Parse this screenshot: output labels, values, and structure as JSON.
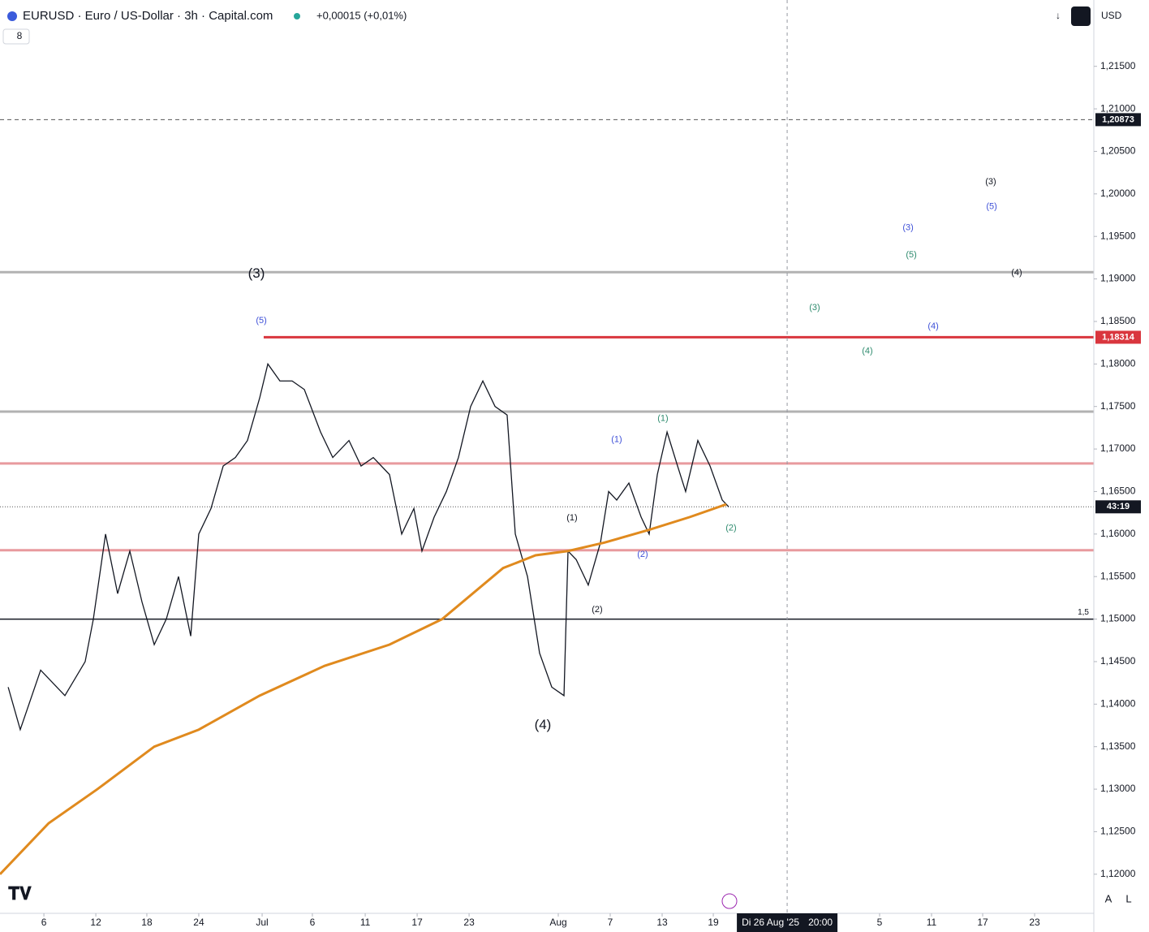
{
  "header": {
    "symbol": "EURUSD · Euro / US-Dollar · 3h · Capital.com",
    "change": "+0,00015 (+0,01%)",
    "indicator_count": "8",
    "currency": "USD"
  },
  "chart_data": {
    "type": "line",
    "xlim": [
      0,
      84.25
    ],
    "ylim": [
      1.1154,
      1.2228
    ],
    "xticks": [
      {
        "value": 3.38,
        "label": "6"
      },
      {
        "value": 7.38,
        "label": "12"
      },
      {
        "value": 11.31,
        "label": "18"
      },
      {
        "value": 15.31,
        "label": "24"
      },
      {
        "value": 20.19,
        "label": "Jul"
      },
      {
        "value": 24.06,
        "label": "6"
      },
      {
        "value": 28.13,
        "label": "11"
      },
      {
        "value": 32.13,
        "label": "17"
      },
      {
        "value": 36.13,
        "label": "23"
      },
      {
        "value": 43,
        "label": "Aug"
      },
      {
        "value": 47,
        "label": "7"
      },
      {
        "value": 51,
        "label": "13"
      },
      {
        "value": 54.94,
        "label": "19"
      },
      {
        "value": 67.75,
        "label": "5"
      },
      {
        "value": 71.75,
        "label": "11"
      },
      {
        "value": 75.69,
        "label": "17"
      },
      {
        "value": 79.69,
        "label": "23"
      }
    ],
    "yticks": [
      {
        "value": 1.12,
        "label": "1,12000"
      },
      {
        "value": 1.125,
        "label": "1,12500"
      },
      {
        "value": 1.13,
        "label": "1,13000"
      },
      {
        "value": 1.135,
        "label": "1,13500"
      },
      {
        "value": 1.14,
        "label": "1,14000"
      },
      {
        "value": 1.145,
        "label": "1,14500"
      },
      {
        "value": 1.15,
        "label": "1,15000"
      },
      {
        "value": 1.155,
        "label": "1,15500"
      },
      {
        "value": 1.16,
        "label": "1,16000"
      },
      {
        "value": 1.165,
        "label": "1,16500"
      },
      {
        "value": 1.17,
        "label": "1,17000"
      },
      {
        "value": 1.175,
        "label": "1,17500"
      },
      {
        "value": 1.18,
        "label": "1,18000"
      },
      {
        "value": 1.185,
        "label": "1,18500"
      },
      {
        "value": 1.19,
        "label": "1,19000"
      },
      {
        "value": 1.195,
        "label": "1,19500"
      },
      {
        "value": 1.2,
        "label": "1,20000"
      },
      {
        "value": 1.205,
        "label": "1,20500"
      },
      {
        "value": 1.21,
        "label": "1,21000"
      },
      {
        "value": 1.215,
        "label": "1,21500"
      }
    ],
    "series": [
      {
        "color": "#131722",
        "x": [
          0.63,
          1.56,
          3.13,
          5,
          6.56,
          7.19,
          8.13,
          9.06,
          10,
          10.94,
          11.88,
          12.81,
          13.75,
          14.69,
          15.31,
          16.25,
          17.19,
          18.13,
          19.06,
          20,
          20.63,
          21.56,
          22.5,
          23.44,
          24.69,
          25.63,
          26.88,
          27.81,
          28.75,
          30,
          30.94,
          31.88,
          32.5,
          33.44,
          34.38,
          35.31,
          36.25,
          37.19,
          38.13,
          39.06,
          39.69,
          40.63,
          41.56,
          42.5,
          43.44,
          43.75,
          44.38,
          45.31,
          46.25,
          46.88,
          47.5,
          48.44,
          49.38,
          50,
          50.63,
          51.38,
          52.19,
          52.81,
          53.75,
          54.69,
          55.63,
          56.13
        ],
        "values": [
          1.142,
          1.137,
          1.144,
          1.141,
          1.145,
          1.15,
          1.16,
          1.153,
          1.158,
          1.152,
          1.147,
          1.15,
          1.155,
          1.148,
          1.16,
          1.163,
          1.168,
          1.169,
          1.171,
          1.176,
          1.18,
          1.178,
          1.178,
          1.177,
          1.172,
          1.169,
          1.171,
          1.168,
          1.169,
          1.167,
          1.16,
          1.163,
          1.158,
          1.162,
          1.165,
          1.169,
          1.175,
          1.178,
          1.175,
          1.174,
          1.16,
          1.155,
          1.146,
          1.142,
          1.141,
          1.158,
          1.157,
          1.154,
          1.159,
          1.165,
          1.164,
          1.166,
          1.162,
          1.16,
          1.167,
          1.172,
          1.168,
          1.165,
          1.171,
          1.168,
          1.164,
          1.1632
        ]
      },
      {
        "color": "#e08a1e",
        "x": [
          0,
          3.75,
          7.5,
          11.88,
          15.31,
          20,
          25,
          30,
          34.06,
          38.75,
          41.25,
          43.75,
          46.56,
          50,
          53.13,
          55.94
        ],
        "values": [
          1.12,
          1.126,
          1.13,
          1.135,
          1.137,
          1.141,
          1.1445,
          1.147,
          1.15,
          1.156,
          1.1575,
          1.158,
          1.159,
          1.1605,
          1.162,
          1.1635
        ]
      }
    ],
    "levels": [
      {
        "value": 1.20873,
        "color": "#555555",
        "style": "dashed",
        "label": "1,20873"
      },
      {
        "value": 1.1908,
        "color": "#b2b2b2"
      },
      {
        "value": 1.18314,
        "color": "#d9363e",
        "start": 20.31,
        "label": "1,18314"
      },
      {
        "value": 1.1744,
        "color": "#b2b2b2"
      },
      {
        "value": 1.1683,
        "color": "#e89a9e"
      },
      {
        "value": 1.1581,
        "color": "#e89a9e"
      },
      {
        "value": 1.15,
        "color": "#131722",
        "note": "1,5"
      },
      {
        "value": 1.1632,
        "color": "#555555",
        "style": "dotted",
        "label": "43:19"
      }
    ],
    "crosshair": {
      "x": 60.63,
      "date": "Di 26 Aug '25",
      "time": "20:00"
    },
    "wave_labels": [
      {
        "text": "(3)",
        "x": 19.75,
        "y": 1.1906,
        "color": "#131722",
        "major": true
      },
      {
        "text": "(5)",
        "x": 20.13,
        "y": 1.1851,
        "color": "#3f51d8"
      },
      {
        "text": "(4)",
        "x": 41.81,
        "y": 1.1375,
        "color": "#131722",
        "major": true
      },
      {
        "text": "(1)",
        "x": 44.06,
        "y": 1.1619,
        "color": "#131722"
      },
      {
        "text": "(2)",
        "x": 46,
        "y": 1.1511,
        "color": "#131722"
      },
      {
        "text": "(1)",
        "x": 47.5,
        "y": 1.1711,
        "color": "#3f51d8"
      },
      {
        "text": "(2)",
        "x": 49.5,
        "y": 1.1576,
        "color": "#3f51d8"
      },
      {
        "text": "(1)",
        "x": 51.06,
        "y": 1.1736,
        "color": "#2e8b6e"
      },
      {
        "text": "(2)",
        "x": 56.31,
        "y": 1.1607,
        "color": "#2e8b6e"
      },
      {
        "text": "(3)",
        "x": 62.75,
        "y": 1.1866,
        "color": "#2e8b6e"
      },
      {
        "text": "(4)",
        "x": 66.81,
        "y": 1.1815,
        "color": "#2e8b6e"
      },
      {
        "text": "(5)",
        "x": 70.19,
        "y": 1.1928,
        "color": "#2e8b6e"
      },
      {
        "text": "(3)",
        "x": 69.94,
        "y": 1.196,
        "color": "#3f51d8"
      },
      {
        "text": "(4)",
        "x": 71.88,
        "y": 1.1844,
        "color": "#3f51d8"
      },
      {
        "text": "(5)",
        "x": 76.38,
        "y": 1.1985,
        "color": "#3f51d8"
      },
      {
        "text": "(3)",
        "x": 76.31,
        "y": 1.2014,
        "color": "#131722"
      },
      {
        "text": "(4)",
        "x": 78.31,
        "y": 1.1907,
        "color": "#131722"
      }
    ],
    "scale_buttons": [
      "A",
      "L"
    ]
  }
}
